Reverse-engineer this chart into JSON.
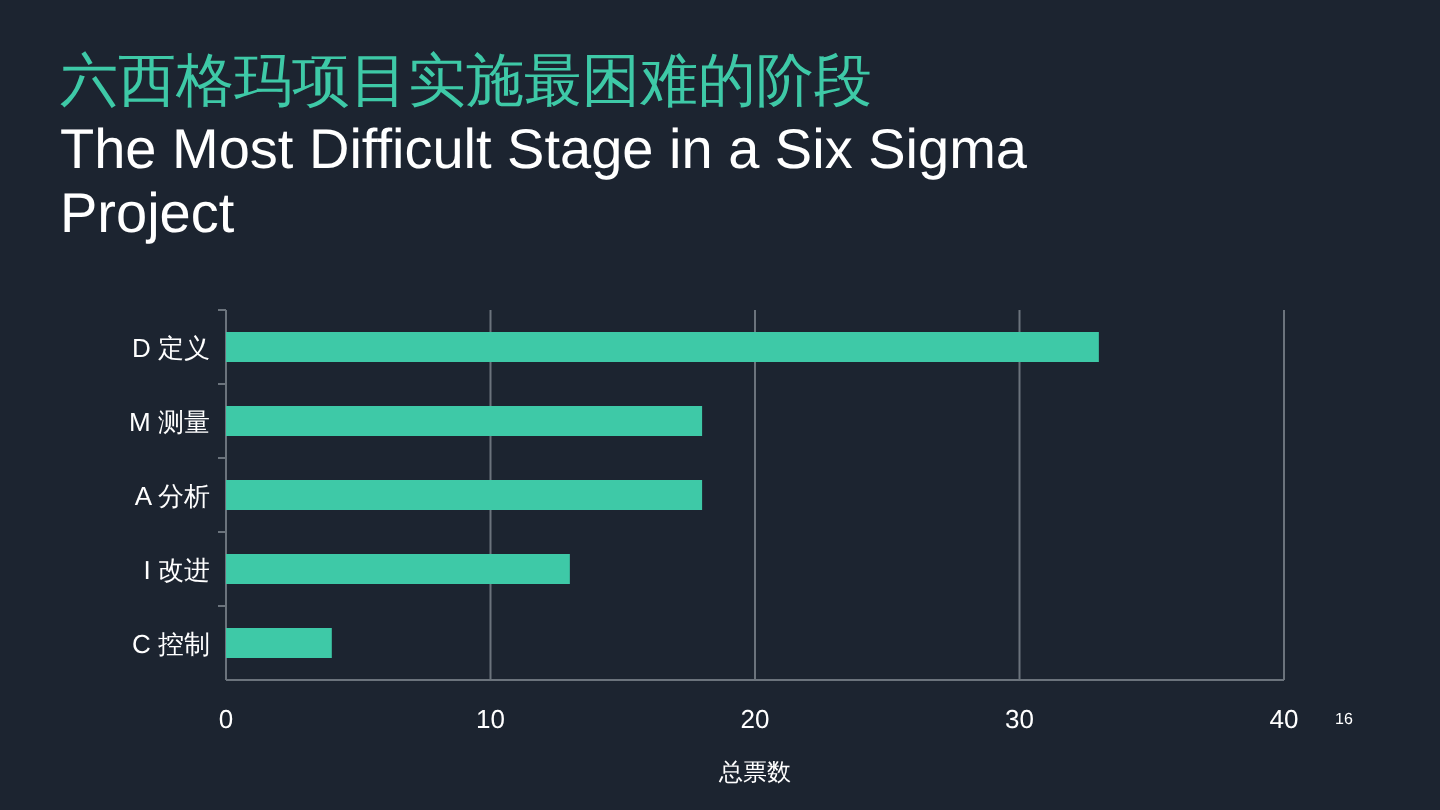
{
  "chart_data": {
    "type": "bar",
    "orientation": "horizontal",
    "title": "六西格玛项目实施最困难的阶段",
    "subtitle": "The Most Difficult Stage in a Six Sigma Project",
    "categories": [
      "D 定义",
      "M 测量",
      "A 分析",
      "I 改进",
      "C 控制"
    ],
    "values": [
      33,
      18,
      18,
      13,
      4
    ],
    "color": "#3ec9a7",
    "xlim": [
      0,
      40
    ],
    "xticks": [
      0,
      10,
      20,
      30,
      40
    ],
    "xlabel": "总票数",
    "grid": "x",
    "annotations": [
      "16"
    ]
  }
}
